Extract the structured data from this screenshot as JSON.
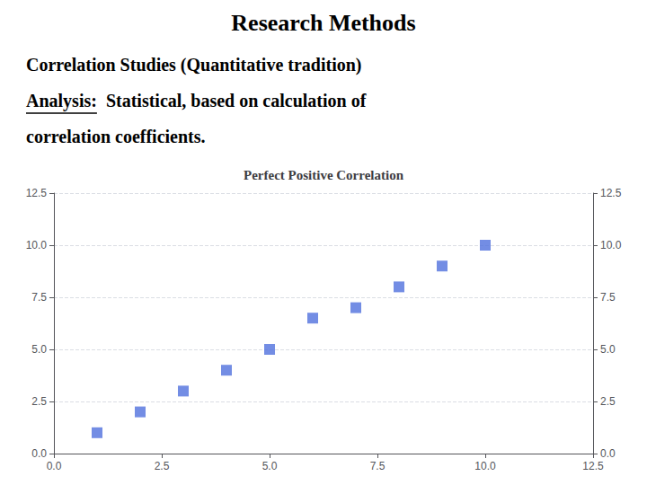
{
  "chart_data": {
    "type": "scatter",
    "title": "Perfect Positive Correlation",
    "annotations": [
      "Research Methods",
      "Correlation Studies (Quantitative tradition)",
      "Analysis:",
      "Statistical, based on calculation of",
      "correlation coefficients."
    ],
    "x": [
      1,
      2,
      3,
      4,
      5,
      6,
      7,
      8,
      9,
      10
    ],
    "values": [
      1,
      2,
      3,
      4,
      5,
      6.5,
      7,
      8,
      9,
      10
    ],
    "xlim": [
      0,
      12.5
    ],
    "ylim": [
      0,
      12.5
    ],
    "xticks": [
      {
        "value": 0,
        "label": "0.0"
      },
      2.5,
      {
        "value": 5,
        "label": "5.0"
      },
      7.5,
      {
        "value": 10,
        "label": "10.0"
      },
      12.5
    ],
    "yticks": [
      {
        "value": 0,
        "label": "0.0"
      },
      2.5,
      {
        "value": 5,
        "label": "5.0"
      },
      7.5,
      {
        "value": 10,
        "label": "10.0"
      },
      12.5
    ],
    "y2lim": [
      0,
      12.5
    ],
    "y2ticks": [
      {
        "value": 0,
        "label": "0.0"
      },
      2.5,
      {
        "value": 5,
        "label": "5.0"
      },
      7.5,
      {
        "value": 10,
        "label": "10.0"
      },
      12.5
    ],
    "marker": "square",
    "grid": true
  }
}
